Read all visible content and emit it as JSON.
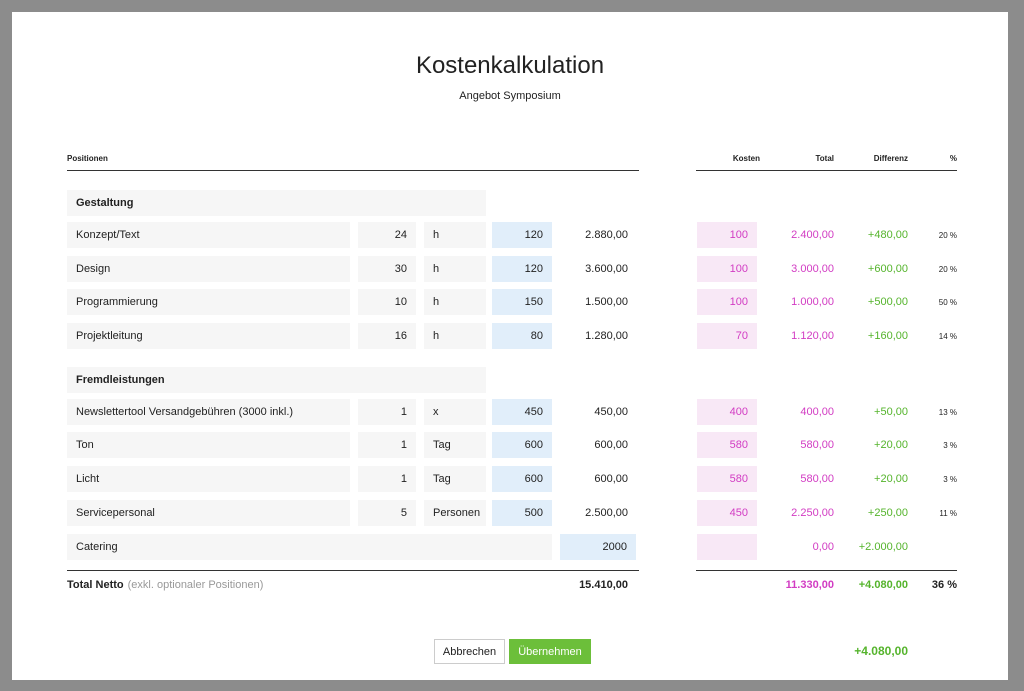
{
  "header": {
    "title": "Kostenkalkulation",
    "subtitle": "Angebot Symposium"
  },
  "columns": {
    "position": "Positionen",
    "cost": "Kosten",
    "total": "Total",
    "difference": "Differenz",
    "percent": "%"
  },
  "groups": [
    {
      "title": "Gestaltung",
      "rows": [
        {
          "name": "Konzept/Text",
          "quantity": "24",
          "unit": "h",
          "rate": "120",
          "total": "2.880,00",
          "cost": "100",
          "cost_total": "2.400,00",
          "difference": "+480,00",
          "percent": "20 %"
        },
        {
          "name": "Design",
          "quantity": "30",
          "unit": "h",
          "rate": "120",
          "total": "3.600,00",
          "cost": "100",
          "cost_total": "3.000,00",
          "difference": "+600,00",
          "percent": "20 %"
        },
        {
          "name": "Programmierung",
          "quantity": "10",
          "unit": "h",
          "rate": "150",
          "total": "1.500,00",
          "cost": "100",
          "cost_total": "1.000,00",
          "difference": "+500,00",
          "percent": "50 %"
        },
        {
          "name": "Projektleitung",
          "quantity": "16",
          "unit": "h",
          "rate": "80",
          "total": "1.280,00",
          "cost": "70",
          "cost_total": "1.120,00",
          "difference": "+160,00",
          "percent": "14 %"
        }
      ]
    },
    {
      "title": "Fremdleistungen",
      "rows": [
        {
          "name": "Newslettertool Versandgebühren (3000 inkl.)",
          "quantity": "1",
          "unit": "x",
          "rate": "450",
          "total": "450,00",
          "cost": "400",
          "cost_total": "400,00",
          "difference": "+50,00",
          "percent": "13 %"
        },
        {
          "name": "Ton",
          "quantity": "1",
          "unit": "Tag",
          "rate": "600",
          "total": "600,00",
          "cost": "580",
          "cost_total": "580,00",
          "difference": "+20,00",
          "percent": "3 %"
        },
        {
          "name": "Licht",
          "quantity": "1",
          "unit": "Tag",
          "rate": "600",
          "total": "600,00",
          "cost": "580",
          "cost_total": "580,00",
          "difference": "+20,00",
          "percent": "3 %"
        },
        {
          "name": "Servicepersonal",
          "quantity": "5",
          "unit": "Personen",
          "rate": "500",
          "total": "2.500,00",
          "cost": "450",
          "cost_total": "2.250,00",
          "difference": "+250,00",
          "percent": "11 %"
        },
        {
          "name": "Catering",
          "rate": "2000",
          "cost_total": "0,00",
          "difference": "+2.000,00"
        }
      ]
    }
  ],
  "totals": {
    "label": "Total Netto",
    "note": "(exkl. optionaler Positionen)",
    "total": "15.410,00",
    "cost_total": "11.330,00",
    "difference": "+4.080,00",
    "percent": "36 %"
  },
  "buttons": {
    "cancel": "Abbrechen",
    "apply": "Übernehmen"
  },
  "footer_difference": "+4.080,00"
}
